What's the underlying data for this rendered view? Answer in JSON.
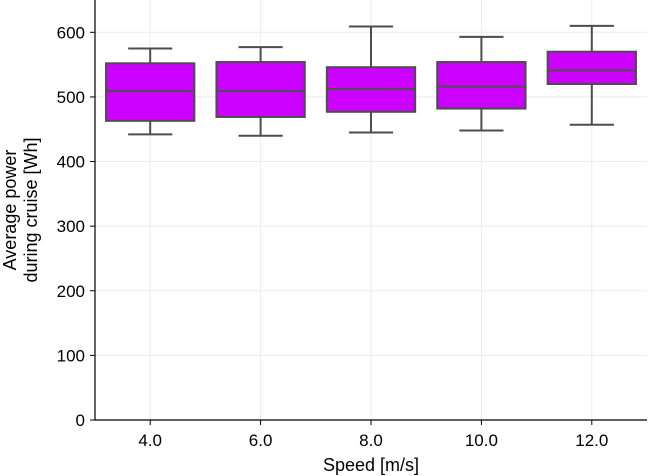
{
  "chart_data": {
    "type": "box",
    "title": "",
    "xlabel": "Speed [m/s]",
    "ylabel_lines": [
      "Average power",
      "during cruise [Wh]"
    ],
    "categories": [
      "4.0",
      "6.0",
      "8.0",
      "10.0",
      "12.0"
    ],
    "ylim": [
      0,
      650
    ],
    "yticks": [
      0,
      100,
      200,
      300,
      400,
      500,
      600
    ],
    "grid": true,
    "legend": "none",
    "box_color": "#cc00ff",
    "line_color": "#4d4d4d",
    "boxes": [
      {
        "category": "4.0",
        "whisker_low": 442,
        "q1": 463,
        "median": 509,
        "q3": 552,
        "whisker_high": 575
      },
      {
        "category": "6.0",
        "whisker_low": 440,
        "q1": 469,
        "median": 509,
        "q3": 554,
        "whisker_high": 577
      },
      {
        "category": "8.0",
        "whisker_low": 445,
        "q1": 477,
        "median": 512,
        "q3": 546,
        "whisker_high": 609
      },
      {
        "category": "10.0",
        "whisker_low": 448,
        "q1": 482,
        "median": 516,
        "q3": 554,
        "whisker_high": 593
      },
      {
        "category": "12.0",
        "whisker_low": 457,
        "q1": 520,
        "median": 541,
        "q3": 570,
        "whisker_high": 610
      }
    ]
  }
}
